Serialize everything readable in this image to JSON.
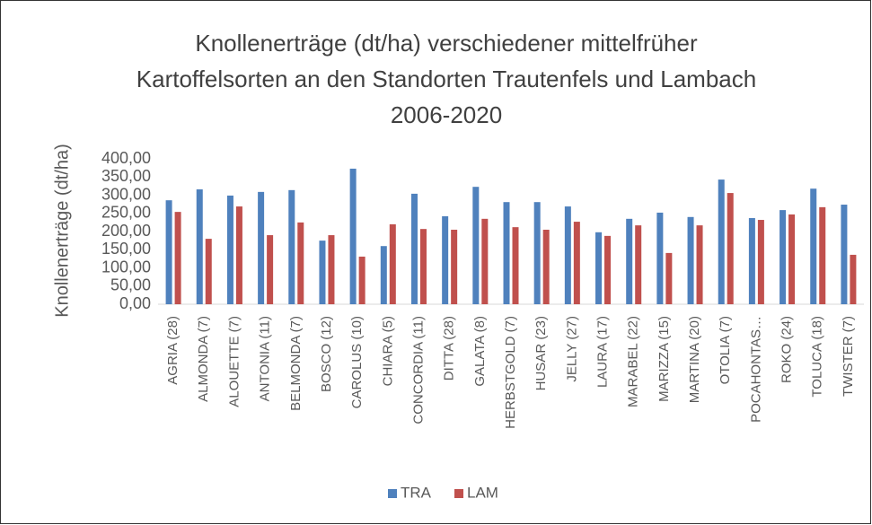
{
  "chart_data": {
    "type": "bar",
    "title": "Knollenerträge (dt/ha) verschiedener mittelfrüher Kartoffelsorten an den Standorten Trautenfels und Lambach 2006-2020",
    "y_label": "Knollenerträge (dt/ha)",
    "categories": [
      "AGRIA (28)",
      "ALMONDA (7)",
      "ALOUETTE (7)",
      "ANTONIA (11)",
      "BELMONDA (7)",
      "BOSCO (12)",
      "CAROLUS (10)",
      "CHIARA (5)",
      "CONCORDIA (11)",
      "DITTA (28)",
      "GALATA (8)",
      "HERBSTGOLD (7)",
      "HUSAR (23)",
      "JELLY (27)",
      "LAURA (17)",
      "MARABEL (22)",
      "MARIZZA (15)",
      "MARTINA (20)",
      "OTOLIA (7)",
      "POCAHONTAS…",
      "ROKO (24)",
      "TOLUCA (18)",
      "TWISTER (7)"
    ],
    "series": [
      {
        "name": "TRA",
        "color": "#4f81bd",
        "values": [
          286,
          316,
          299,
          309,
          314,
          175,
          373,
          160,
          304,
          242,
          323,
          281,
          281,
          269,
          198,
          235,
          252,
          240,
          343,
          237,
          259,
          318,
          274
        ]
      },
      {
        "name": "LAM",
        "color": "#c0504d",
        "values": [
          254,
          180,
          269,
          190,
          225,
          190,
          131,
          220,
          207,
          205,
          235,
          212,
          205,
          227,
          188,
          217,
          141,
          217,
          306,
          232,
          247,
          267,
          136
        ]
      }
    ],
    "ylim": [
      0,
      400
    ],
    "yticks": [
      {
        "value": 0,
        "label": "0,00"
      },
      {
        "value": 50,
        "label": "50,00"
      },
      {
        "value": 100,
        "label": "100,00"
      },
      {
        "value": 150,
        "label": "150,00"
      },
      {
        "value": 200,
        "label": "200,00"
      },
      {
        "value": 250,
        "label": "250,00"
      },
      {
        "value": 300,
        "label": "300,00"
      },
      {
        "value": 350,
        "label": "350,00"
      },
      {
        "value": 400,
        "label": "400,00"
      }
    ],
    "grid": false,
    "legend": "bottom"
  }
}
